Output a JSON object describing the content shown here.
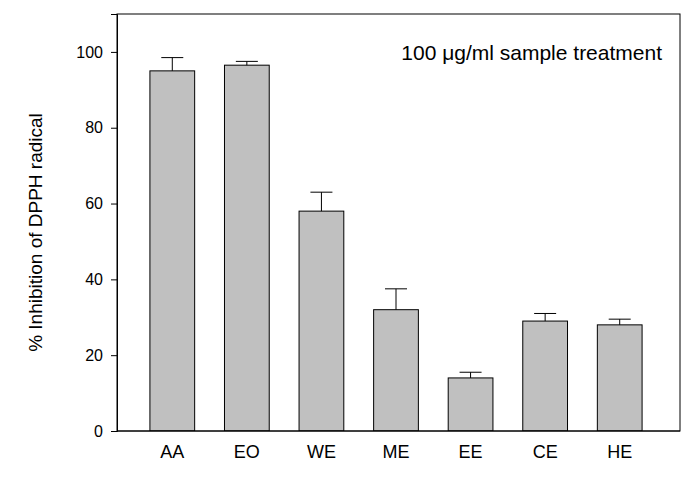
{
  "chart_data": {
    "type": "bar",
    "annotations": [
      "100 μg/ml sample treatment"
    ],
    "y_label": "% Inhibition of DPPH radical",
    "categories": [
      "AA",
      "EO",
      "WE",
      "ME",
      "EE",
      "CE",
      "HE"
    ],
    "values": [
      95,
      96.5,
      58,
      32,
      14,
      29,
      28
    ],
    "errors": [
      3.5,
      1,
      5,
      5.5,
      1.5,
      2,
      1.5
    ],
    "color": "#c0c0c0",
    "ylim": [
      0,
      110
    ],
    "yticks": [
      0,
      20,
      40,
      60,
      80,
      100
    ],
    "grid": false
  }
}
